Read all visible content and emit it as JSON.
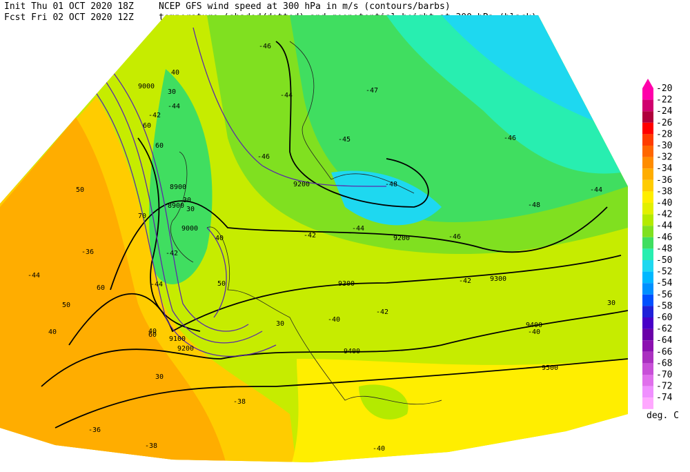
{
  "header": {
    "init": "Init  Thu 01 OCT 2020 18Z",
    "fcst": "Fcst Fri 02 OCT 2020 12Z",
    "title": "NCEP GFS wind speed at 300 hPa in m/s (contours/barbs)",
    "subtitle": "temperature (shaded/dotted) and geopotential height at 300 hPa (black)"
  },
  "colorbar": {
    "labels": [
      "-20",
      "-22",
      "-24",
      "-26",
      "-28",
      "-30",
      "-32",
      "-34",
      "-36",
      "-38",
      "-40",
      "-42",
      "-44",
      "-46",
      "-48",
      "-50",
      "-52",
      "-54",
      "-56",
      "-58",
      "-60",
      "-62",
      "-64",
      "-66",
      "-68",
      "-70",
      "-72",
      "-74"
    ],
    "colors": [
      "#ff00aa",
      "#d0006e",
      "#b0003c",
      "#ff0000",
      "#ff3c00",
      "#ff6600",
      "#ff8c00",
      "#ffad00",
      "#ffcc00",
      "#ffee00",
      "#e2f000",
      "#b4ea00",
      "#80e020",
      "#40de60",
      "#28eeb0",
      "#1ed8f0",
      "#00b8ff",
      "#0090ff",
      "#0050ff",
      "#2020d8",
      "#4800c8",
      "#6a00a8",
      "#8c10b0",
      "#aa30c0",
      "#c850d8",
      "#e070ec",
      "#f090ff",
      "#ffa8ff"
    ],
    "unit": "deg. C"
  },
  "map": {
    "height_labels": [
      "9000",
      "8900",
      "8900",
      "9000",
      "9100",
      "9200",
      "9200",
      "9200",
      "9300",
      "9300",
      "9400",
      "9400",
      "9500"
    ],
    "wind_labels": [
      "40",
      "30",
      "60",
      "60",
      "50",
      "50",
      "40",
      "30",
      "70",
      "30",
      "40",
      "60",
      "50",
      "40",
      "30",
      "30",
      "30",
      "60"
    ],
    "temp_labels": [
      "-46",
      "-44",
      "-47",
      "-44",
      "-42",
      "-45",
      "-46",
      "-48",
      "-46",
      "-44",
      "-44",
      "-42",
      "-46",
      "-48",
      "-44",
      "-42",
      "-40",
      "-42",
      "-40",
      "-36",
      "-36",
      "-38",
      "-40",
      "-38",
      "-44",
      "-42"
    ]
  }
}
